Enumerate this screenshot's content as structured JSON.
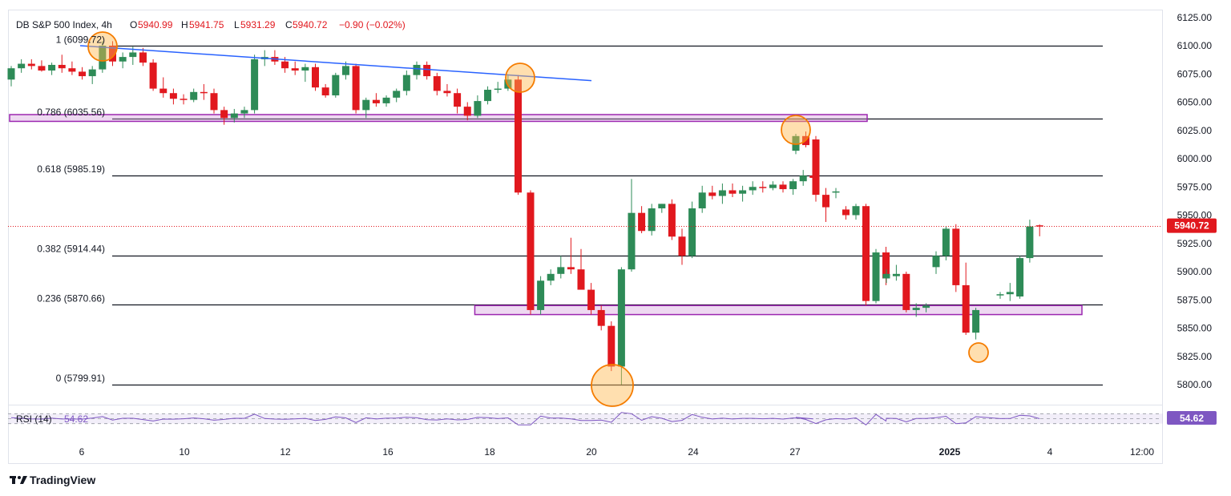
{
  "header": {
    "symbol": "DB S&P 500 Index, 4h",
    "open_label": "O",
    "open": "5940.99",
    "high_label": "H",
    "high": "5941.75",
    "low_label": "L",
    "low": "5931.29",
    "close_label": "C",
    "close": "5940.72",
    "change": "−0.90 (−0.02%)"
  },
  "brand": "TradingView",
  "chart_data": {
    "type": "candlestick",
    "interval": "4h",
    "ylim": [
      5790,
      6130
    ],
    "yticks": [
      "6125.00",
      "6100.00",
      "6075.00",
      "6050.00",
      "6025.00",
      "6000.00",
      "5975.00",
      "5950.00",
      "5925.00",
      "5900.00",
      "5875.00",
      "5850.00",
      "5825.00",
      "5800.00"
    ],
    "xticks": [
      {
        "label": "6",
        "bold": false
      },
      {
        "label": "10",
        "bold": false
      },
      {
        "label": "12",
        "bold": false
      },
      {
        "label": "16",
        "bold": false
      },
      {
        "label": "18",
        "bold": false
      },
      {
        "label": "20",
        "bold": false
      },
      {
        "label": "24",
        "bold": false
      },
      {
        "label": "27",
        "bold": false
      },
      {
        "label": "2025",
        "bold": true
      },
      {
        "label": "4",
        "bold": false
      },
      {
        "label": "12:00",
        "bold": false
      }
    ],
    "last_price": "5940.72",
    "last_value": 5940.72,
    "fib_levels": [
      {
        "label": "1 (6099.72)",
        "value": 6099.72
      },
      {
        "label": "0.786 (6035.56)",
        "value": 6035.56
      },
      {
        "label": "0.618 (5985.19)",
        "value": 5985.19
      },
      {
        "label": "0.382 (5914.44)",
        "value": 5914.44
      },
      {
        "label": "0.236 (5870.66)",
        "value": 5870.66
      },
      {
        "label": "0 (5799.91)",
        "value": 5799.91
      }
    ],
    "trendline": {
      "from": [
        6,
        6100
      ],
      "to": [
        110,
        6074
      ]
    },
    "zones": [
      {
        "from": 0,
        "to": 203,
        "top": 6039,
        "bottom": 6033
      },
      {
        "from": 92,
        "to": 203,
        "top": 5870,
        "bottom": 5862
      }
    ],
    "markers": [
      {
        "i": 17,
        "value": 6100.5,
        "size": "small"
      },
      {
        "i": 96,
        "value": 6070,
        "size": "small"
      },
      {
        "i": 112,
        "value": 5800,
        "size": "large"
      },
      {
        "i": 146,
        "value": 6024,
        "size": "small"
      },
      {
        "i": 181,
        "value": 5829,
        "size": "tiny"
      }
    ],
    "candles": [
      [
        6070,
        6082,
        6064,
        6080
      ],
      [
        6080,
        6088,
        6076,
        6084
      ],
      [
        6084,
        6088,
        6079,
        6082
      ],
      [
        6082,
        6087,
        6077,
        6078
      ],
      [
        6078,
        6085,
        6074,
        6083
      ],
      [
        6083,
        6092,
        6076,
        6080
      ],
      [
        6080,
        6086,
        6074,
        6077
      ],
      [
        6077,
        6081,
        6070,
        6073
      ],
      [
        6073,
        6082,
        6066,
        6079
      ],
      [
        6079,
        6104,
        6076,
        6100
      ],
      [
        6100,
        6104,
        6082,
        6086
      ],
      [
        6086,
        6094,
        6080,
        6090
      ],
      [
        6090,
        6099,
        6083,
        6094
      ],
      [
        6094,
        6098,
        6082,
        6085
      ],
      [
        6085,
        6088,
        6060,
        6062
      ],
      [
        6062,
        6072,
        6054,
        6058
      ],
      [
        6058,
        6062,
        6048,
        6053
      ],
      [
        6053,
        6057,
        6048,
        6052
      ],
      [
        6052,
        6062,
        6050,
        6059
      ],
      [
        6059,
        6066,
        6052,
        6058
      ],
      [
        6058,
        6062,
        6040,
        6043
      ],
      [
        6043,
        6046,
        6030,
        6036
      ],
      [
        6036,
        6044,
        6032,
        6040
      ],
      [
        6040,
        6046,
        6036,
        6043
      ],
      [
        6043,
        6092,
        6040,
        6088
      ],
      [
        6088,
        6096,
        6082,
        6090
      ],
      [
        6090,
        6096,
        6083,
        6086
      ],
      [
        6086,
        6090,
        6076,
        6080
      ],
      [
        6080,
        6086,
        6074,
        6078
      ],
      [
        6078,
        6084,
        6068,
        6081
      ],
      [
        6081,
        6084,
        6060,
        6063
      ],
      [
        6063,
        6066,
        6054,
        6056
      ],
      [
        6056,
        6076,
        6054,
        6074
      ],
      [
        6074,
        6086,
        6070,
        6082
      ],
      [
        6082,
        6084,
        6040,
        6043
      ],
      [
        6043,
        6054,
        6036,
        6052
      ],
      [
        6052,
        6058,
        6046,
        6049
      ],
      [
        6049,
        6056,
        6046,
        6054
      ],
      [
        6054,
        6062,
        6050,
        6060
      ],
      [
        6060,
        6078,
        6056,
        6074
      ],
      [
        6074,
        6086,
        6070,
        6083
      ],
      [
        6083,
        6086,
        6070,
        6073
      ],
      [
        6073,
        6076,
        6056,
        6060
      ],
      [
        6060,
        6066,
        6055,
        6058
      ],
      [
        6058,
        6062,
        6040,
        6046
      ],
      [
        6046,
        6050,
        6034,
        6038
      ],
      [
        6038,
        6056,
        6036,
        6051
      ],
      [
        6051,
        6064,
        6048,
        6061
      ],
      [
        6061,
        6068,
        6058,
        6062
      ],
      [
        6062,
        6074,
        6060,
        6070
      ],
      [
        6070,
        6074,
        5968,
        5970
      ],
      [
        5970,
        5972,
        5862,
        5866
      ],
      [
        5866,
        5896,
        5862,
        5892
      ],
      [
        5892,
        5902,
        5888,
        5898
      ],
      [
        5898,
        5914,
        5894,
        5904
      ],
      [
        5904,
        5930,
        5898,
        5902
      ],
      [
        5902,
        5920,
        5886,
        5884
      ],
      [
        5884,
        5890,
        5862,
        5866
      ],
      [
        5866,
        5870,
        5848,
        5852
      ],
      [
        5852,
        5856,
        5812,
        5816
      ],
      [
        5816,
        5904,
        5800,
        5902
      ],
      [
        5902,
        5982,
        5900,
        5952
      ],
      [
        5952,
        5958,
        5934,
        5936
      ],
      [
        5936,
        5960,
        5932,
        5956
      ],
      [
        5956,
        5960,
        5952,
        5960
      ],
      [
        5960,
        5964,
        5928,
        5931
      ],
      [
        5931,
        5938,
        5906,
        5914
      ],
      [
        5914,
        5962,
        5912,
        5956
      ],
      [
        5956,
        5976,
        5952,
        5970
      ],
      [
        5970,
        5976,
        5964,
        5967
      ],
      [
        5967,
        5978,
        5960,
        5972
      ],
      [
        5972,
        5978,
        5966,
        5969
      ],
      [
        5969,
        5976,
        5962,
        5972
      ],
      [
        5972,
        5980,
        5968,
        5975
      ],
      [
        5975,
        5980,
        5970,
        5974
      ],
      [
        5974,
        5980,
        5972,
        5977
      ],
      [
        5977,
        5980,
        5970,
        5973
      ],
      [
        5973,
        5982,
        5968,
        5980
      ],
      [
        5980,
        5990,
        5976,
        5985
      ],
      [
        5985,
        5988,
        5982,
        5983
      ],
      [
        6007,
        6022,
        6004,
        6020
      ],
      [
        6020,
        6024,
        6010,
        6012
      ],
      [
        6017,
        6020,
        5962,
        5968
      ],
      [
        5968,
        5974,
        5944,
        5957
      ],
      [
        5970,
        5974,
        5965,
        5971
      ],
      [
        5955,
        5958,
        5946,
        5950
      ],
      [
        5950,
        5960,
        5946,
        5958
      ],
      [
        5958,
        5960,
        5870,
        5874
      ],
      [
        5874,
        5920,
        5872,
        5917
      ],
      [
        5917,
        5922,
        5888,
        5894
      ],
      [
        5894,
        5902,
        5890,
        5898
      ],
      [
        5896,
        5906,
        5892,
        5898
      ],
      [
        5898,
        5900,
        5864,
        5866
      ],
      [
        5866,
        5872,
        5860,
        5868
      ],
      [
        5868,
        5872,
        5864,
        5870
      ],
      [
        5904,
        5918,
        5898,
        5914
      ],
      [
        5914,
        5940,
        5910,
        5938
      ],
      [
        5938,
        5942,
        5882,
        5888
      ],
      [
        5888,
        5908,
        5844,
        5846
      ],
      [
        5846,
        5868,
        5840,
        5866
      ],
      [
        5879,
        5882,
        5876,
        5880
      ],
      [
        5880,
        5890,
        5874,
        5882
      ],
      [
        5878,
        5914,
        5876,
        5912
      ],
      [
        5912,
        5946,
        5908,
        5940
      ],
      [
        5940.99,
        5941.75,
        5931.29,
        5940.72
      ]
    ],
    "rsi": {
      "label": "RSI (14)",
      "value": "54.62",
      "value_num": 54.62,
      "upper": 70,
      "lower": 30
    }
  }
}
